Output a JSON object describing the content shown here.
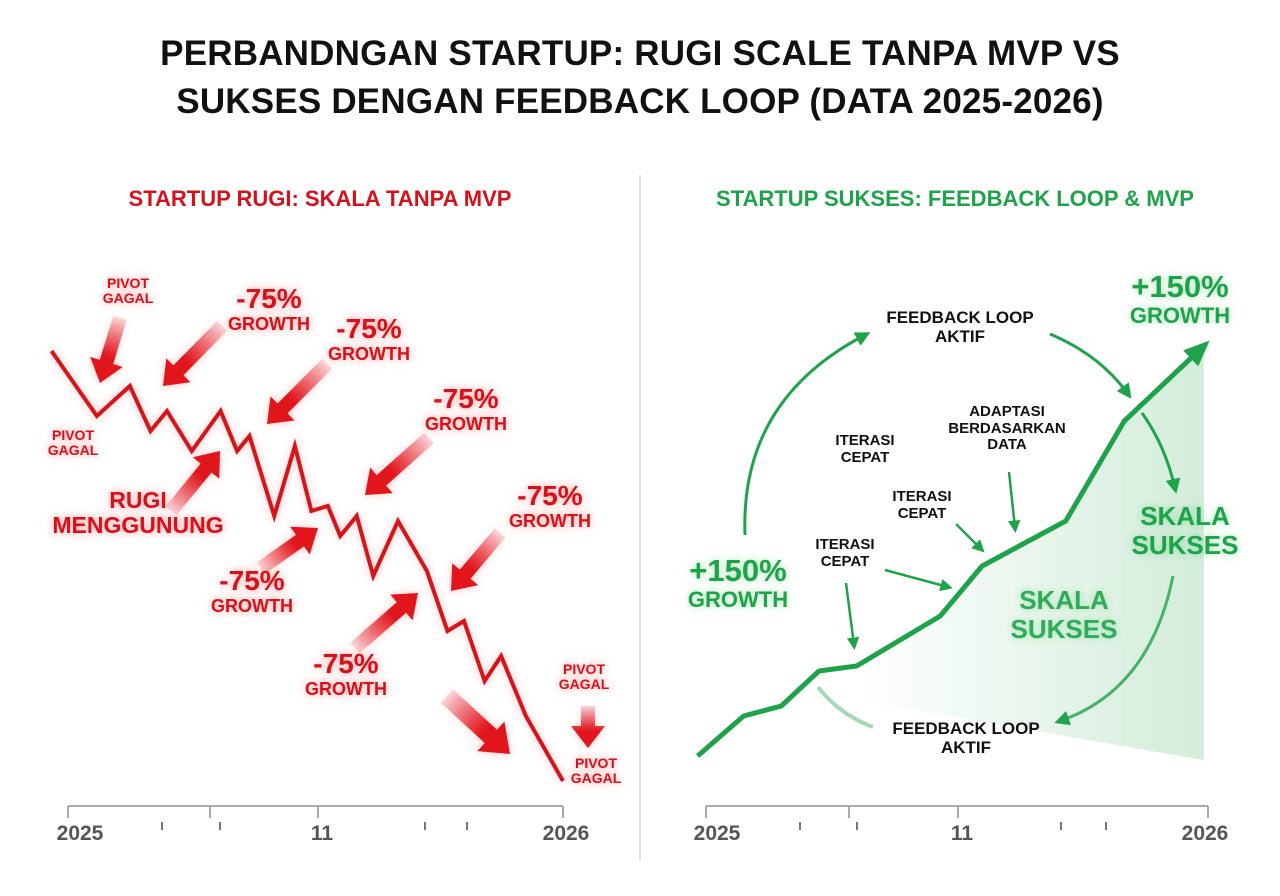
{
  "title": {
    "line1": "PERBANDNGAN STARTUP: RUGI SCALE TANPA MVP VS",
    "line2": "SUKSES DENGAN FEEDBACK LOOP (DATA 2025-2026)"
  },
  "colors": {
    "loss": "#d4121c",
    "success": "#1fa34a",
    "axis": "#999999"
  },
  "left": {
    "subtitle": "STARTUP RUGI: SKALA TANPA MVP",
    "annotations": {
      "pivot_top": [
        "PIVOT",
        "GAGAL"
      ],
      "pivot_left": [
        "PIVOT",
        "GAGAL"
      ],
      "pivot_right_top": [
        "PIVOT",
        "GAGAL"
      ],
      "pivot_right_bottom": [
        "PIVOT",
        "GAGAL"
      ],
      "rugi": [
        "RUGI",
        "MENGGUNUNG"
      ],
      "growth_value": "-75%",
      "growth_label": "GROWTH"
    }
  },
  "right": {
    "subtitle": "STARTUP SUKSES: FEEDBACK LOOP & MVP",
    "annotations": {
      "growth_value": "+150%",
      "growth_label": "GROWTH",
      "feedback_top": [
        "FEEDBACK LOOP",
        "AKTIF"
      ],
      "feedback_bottom": [
        "FEEDBACK LOOP",
        "AKTIF"
      ],
      "adaptasi": [
        "ADAPTASI",
        "BERDASARKAN",
        "DATA"
      ],
      "iterasi": [
        "ITERASI",
        "CEPAT"
      ],
      "skala": [
        "SKALA",
        "SUKSES"
      ]
    }
  },
  "chart_data": [
    {
      "type": "line",
      "title": "STARTUP RUGI: SKALA TANPA MVP",
      "x_tick_labels": [
        "2025",
        "11",
        "2026"
      ],
      "grid": false,
      "color": "#d4121c",
      "x": [
        -0.4,
        0.7,
        1.5,
        2.0,
        2.4,
        3.0,
        3.7,
        4.1,
        4.4,
        5.0,
        5.5,
        5.9,
        6.3,
        6.6,
        7.0,
        7.4,
        8.0,
        8.7,
        9.2,
        9.6,
        10.1,
        10.5,
        11.1,
        12.0
      ],
      "y": [
        91,
        78,
        84,
        75,
        79,
        71,
        79,
        71,
        74,
        58,
        72,
        59,
        60,
        54,
        58,
        46,
        57,
        47,
        35,
        37,
        25,
        30,
        18,
        5
      ]
    },
    {
      "type": "area",
      "title": "STARTUP SUKSES: FEEDBACK LOOP & MVP",
      "x_tick_labels": [
        "2025",
        "11",
        "2026"
      ],
      "grid": false,
      "color": "#1fa34a",
      "x": [
        -0.2,
        0.9,
        1.8,
        2.7,
        3.6,
        5.6,
        6.6,
        8.6,
        10.0,
        11.9
      ],
      "y": [
        10,
        18,
        20,
        27,
        28,
        38,
        48,
        57,
        77,
        92
      ]
    }
  ]
}
